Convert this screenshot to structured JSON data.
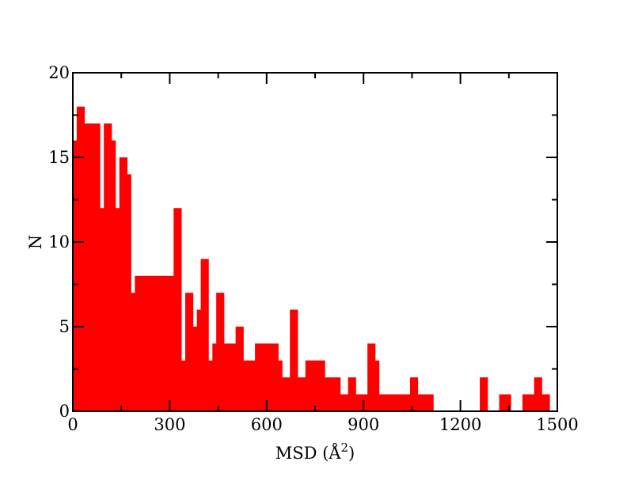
{
  "chart_data": {
    "type": "bar",
    "xlabel": "MSD (Å",
    "xlabel_sup": "2",
    "xlabel_tail": ")",
    "ylabel": "N",
    "xlim": [
      0,
      1500
    ],
    "ylim": [
      0,
      20
    ],
    "x_ticks": [
      0,
      300,
      600,
      900,
      1200,
      1500
    ],
    "y_ticks": [
      0,
      5,
      10,
      15,
      20
    ],
    "grid": false,
    "bar_color": "#ff0000",
    "bin_width": 12,
    "bin_start": 0,
    "values": [
      16,
      18,
      18,
      17,
      17,
      17,
      17,
      12,
      17,
      17,
      16,
      12,
      15,
      15,
      14,
      7,
      8,
      8,
      8,
      8,
      8,
      8,
      8,
      8,
      8,
      8,
      12,
      12,
      3,
      7,
      7,
      5,
      6,
      9,
      9,
      3,
      4,
      7,
      7,
      4,
      4,
      4,
      5,
      5,
      3,
      3,
      3,
      4,
      4,
      4,
      4,
      4,
      4,
      3,
      2,
      2,
      6,
      6,
      2,
      2,
      3,
      3,
      3,
      3,
      3,
      2,
      2,
      2,
      2,
      1,
      1,
      2,
      2,
      1,
      1,
      1,
      4,
      4,
      3,
      1,
      1,
      1,
      1,
      1,
      1,
      1,
      1,
      2,
      2,
      1,
      1,
      1,
      1,
      0,
      0,
      0,
      0,
      0,
      0,
      0,
      0,
      0,
      0,
      0,
      0,
      2,
      2,
      0,
      0,
      0,
      1,
      1,
      1,
      0,
      0,
      0,
      1,
      1,
      1,
      2,
      2,
      1,
      1,
      0
    ]
  }
}
